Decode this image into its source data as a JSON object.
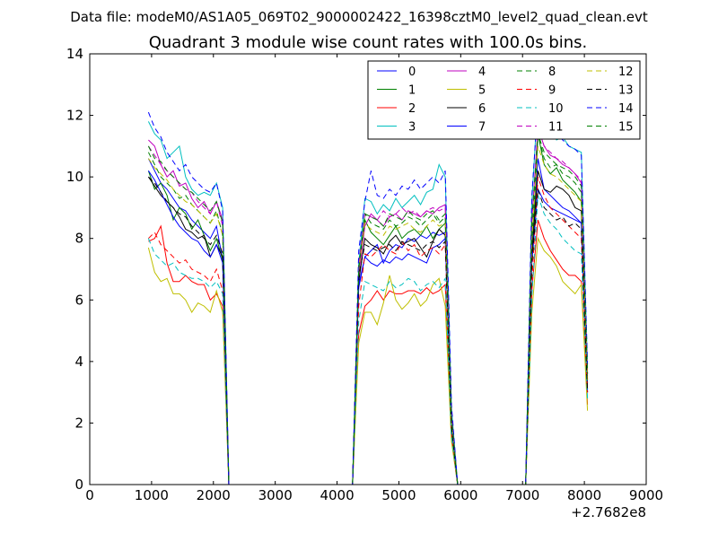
{
  "chart_data": {
    "type": "line",
    "suptitle": "Data file: modeM0/AS1A05_069T02_9000002422_16398cztM0_level2_quad_clean.evt",
    "title": "Quadrant 3 module wise count rates with 100.0s bins.",
    "xlabel": "",
    "ylabel": "",
    "x_offset_label": "+2.7682e8",
    "xlim": [
      0,
      9000
    ],
    "ylim": [
      0,
      14
    ],
    "xticks": [
      0,
      1000,
      2000,
      3000,
      4000,
      5000,
      6000,
      7000,
      8000,
      9000
    ],
    "yticks": [
      0,
      2,
      4,
      6,
      8,
      10,
      12,
      14
    ],
    "grid": false,
    "legend_position": "top-right",
    "x": [
      950,
      1050,
      1150,
      1250,
      1350,
      1450,
      1550,
      1650,
      1750,
      1850,
      1950,
      2050,
      2150,
      2250,
      2350,
      4250,
      4350,
      4450,
      4550,
      4650,
      4750,
      4850,
      4950,
      5050,
      5150,
      5250,
      5350,
      5450,
      5550,
      5650,
      5750,
      5850,
      5950,
      6050,
      7050,
      7150,
      7250,
      7350,
      7450,
      7550,
      7650,
      7750,
      7850,
      7950,
      8050
    ],
    "series": [
      {
        "name": "0",
        "color": "#0000ff",
        "dash": "solid",
        "values": [
          10.6,
          10.2,
          9.8,
          9.6,
          9.3,
          9.0,
          8.9,
          8.6,
          8.4,
          8.2,
          8.0,
          8.4,
          7.3,
          0,
          0,
          0,
          6.4,
          7.4,
          7.6,
          7.8,
          7.2,
          7.6,
          7.8,
          7.7,
          8.0,
          7.9,
          8.1,
          8.0,
          8.2,
          8.1,
          8.2,
          2.0,
          0,
          0,
          0,
          7.6,
          10.6,
          9.6,
          9.4,
          9.2,
          9.0,
          8.9,
          8.7,
          8.5,
          3.0
        ]
      },
      {
        "name": "1",
        "color": "#008000",
        "dash": "solid",
        "values": [
          10.2,
          9.6,
          9.8,
          9.4,
          8.6,
          9.0,
          8.8,
          8.3,
          8.6,
          8.1,
          7.6,
          8.0,
          7.3,
          0,
          0,
          0,
          7.0,
          8.6,
          8.2,
          8.0,
          7.8,
          8.1,
          8.4,
          8.0,
          8.2,
          8.3,
          8.1,
          8.4,
          8.0,
          8.3,
          8.5,
          2.1,
          0,
          0,
          0,
          7.3,
          11.4,
          10.4,
          10.1,
          10.3,
          9.9,
          9.7,
          9.5,
          9.2,
          3.3
        ]
      },
      {
        "name": "2",
        "color": "#ff0000",
        "dash": "solid",
        "values": [
          7.9,
          8.0,
          8.4,
          7.2,
          6.6,
          6.6,
          6.8,
          6.6,
          6.5,
          6.5,
          6.0,
          6.2,
          5.8,
          0,
          0,
          0,
          4.9,
          5.8,
          6.0,
          6.3,
          6.0,
          6.3,
          6.2,
          6.2,
          6.3,
          6.3,
          6.2,
          6.4,
          6.2,
          6.3,
          6.5,
          1.5,
          0,
          0,
          0,
          6.3,
          8.6,
          8.0,
          7.6,
          7.3,
          7.0,
          6.8,
          6.8,
          6.6,
          2.6
        ]
      },
      {
        "name": "3",
        "color": "#00bfbf",
        "dash": "solid",
        "values": [
          11.8,
          11.4,
          11.2,
          10.6,
          10.8,
          11.0,
          10.0,
          9.6,
          9.4,
          9.5,
          9.4,
          9.8,
          9.0,
          0,
          0,
          0,
          7.2,
          9.3,
          9.2,
          8.8,
          9.1,
          8.9,
          9.3,
          9.0,
          9.2,
          9.4,
          9.1,
          9.5,
          9.6,
          10.4,
          10.0,
          2.5,
          0,
          0,
          0,
          9.2,
          12.6,
          11.8,
          11.5,
          11.2,
          11.3,
          11.0,
          10.9,
          10.8,
          3.8
        ]
      },
      {
        "name": "4",
        "color": "#bf00bf",
        "dash": "solid",
        "values": [
          11.2,
          11.0,
          10.4,
          10.0,
          10.2,
          9.7,
          9.8,
          9.3,
          9.0,
          9.2,
          8.8,
          9.2,
          8.6,
          0,
          0,
          0,
          6.8,
          8.4,
          8.8,
          8.6,
          8.4,
          8.7,
          8.8,
          8.6,
          8.9,
          8.8,
          8.7,
          8.9,
          8.8,
          9.0,
          9.1,
          2.3,
          0,
          0,
          0,
          8.6,
          11.6,
          11.0,
          10.7,
          10.6,
          10.4,
          10.3,
          10.1,
          9.8,
          3.6
        ]
      },
      {
        "name": "5",
        "color": "#bfbf00",
        "dash": "solid",
        "values": [
          7.7,
          6.9,
          6.6,
          6.7,
          6.2,
          6.2,
          6.0,
          5.6,
          5.9,
          5.8,
          5.6,
          6.3,
          5.6,
          0,
          0,
          0,
          4.6,
          5.6,
          5.6,
          5.2,
          5.9,
          6.8,
          6.0,
          5.7,
          5.9,
          6.2,
          5.8,
          6.0,
          6.5,
          6.7,
          5.8,
          1.4,
          0,
          0,
          0,
          5.6,
          8.0,
          7.6,
          7.4,
          7.1,
          6.6,
          6.4,
          6.2,
          6.5,
          2.4
        ]
      },
      {
        "name": "6",
        "color": "#000000",
        "dash": "solid",
        "values": [
          10.0,
          9.7,
          9.4,
          9.2,
          9.0,
          8.7,
          8.3,
          8.2,
          8.0,
          8.1,
          7.4,
          7.8,
          7.4,
          0,
          0,
          0,
          6.6,
          8.0,
          7.8,
          7.7,
          7.5,
          7.9,
          8.1,
          7.8,
          7.9,
          8.0,
          7.7,
          7.4,
          7.9,
          8.3,
          8.1,
          1.9,
          0,
          0,
          0,
          7.4,
          10.2,
          9.6,
          9.5,
          9.7,
          9.6,
          9.4,
          9.0,
          8.9,
          3.1
        ]
      },
      {
        "name": "7",
        "color": "#0000ff",
        "dash": "solid",
        "values": [
          10.2,
          9.9,
          9.5,
          9.1,
          8.7,
          8.4,
          8.2,
          8.0,
          7.9,
          7.6,
          7.4,
          7.8,
          7.2,
          0,
          0,
          0,
          6.5,
          7.4,
          7.2,
          7.1,
          7.3,
          7.2,
          7.4,
          7.3,
          7.5,
          7.4,
          7.3,
          7.2,
          7.7,
          7.8,
          8.0,
          1.8,
          0,
          0,
          0,
          7.2,
          9.6,
          9.2,
          9.0,
          8.9,
          8.8,
          8.7,
          8.6,
          8.5,
          3.0
        ]
      },
      {
        "name": "8",
        "color": "#008000",
        "dash": "dashed",
        "values": [
          10.8,
          10.4,
          10.0,
          9.8,
          9.6,
          9.3,
          9.4,
          9.1,
          8.9,
          8.7,
          8.5,
          8.9,
          8.1,
          0,
          0,
          0,
          7.1,
          8.8,
          8.5,
          8.4,
          8.3,
          8.6,
          8.4,
          8.5,
          8.7,
          8.6,
          8.4,
          8.6,
          8.8,
          8.5,
          8.7,
          2.1,
          0,
          0,
          0,
          8.0,
          11.4,
          10.6,
          10.3,
          10.4,
          10.1,
          10.0,
          9.8,
          9.5,
          3.4
        ]
      },
      {
        "name": "9",
        "color": "#ff0000",
        "dash": "dashed",
        "values": [
          8.0,
          8.2,
          7.8,
          7.6,
          7.4,
          7.2,
          7.3,
          7.0,
          6.9,
          6.8,
          6.6,
          7.0,
          6.3,
          0,
          0,
          0,
          5.8,
          7.5,
          7.4,
          7.6,
          7.8,
          7.6,
          7.5,
          7.9,
          7.6,
          7.8,
          7.4,
          7.6,
          7.7,
          7.5,
          7.8,
          1.8,
          0,
          0,
          0,
          6.6,
          10.0,
          9.4,
          9.0,
          8.8,
          8.6,
          8.4,
          8.2,
          8.0,
          3.0
        ]
      },
      {
        "name": "10",
        "color": "#00bfbf",
        "dash": "dashed",
        "values": [
          8.0,
          7.5,
          7.3,
          7.1,
          7.2,
          6.9,
          6.8,
          6.7,
          6.7,
          6.6,
          6.4,
          6.6,
          6.2,
          0,
          0,
          0,
          5.3,
          6.6,
          6.5,
          6.4,
          6.3,
          6.6,
          6.4,
          6.5,
          6.7,
          6.6,
          6.3,
          6.5,
          6.6,
          6.4,
          6.7,
          1.6,
          0,
          0,
          0,
          6.1,
          9.4,
          8.8,
          8.5,
          8.3,
          8.0,
          7.8,
          7.6,
          7.5,
          2.8
        ]
      },
      {
        "name": "11",
        "color": "#bf00bf",
        "dash": "dashed",
        "values": [
          11.0,
          10.7,
          10.4,
          10.2,
          10.0,
          9.8,
          9.6,
          9.5,
          9.2,
          9.0,
          8.8,
          9.2,
          8.4,
          0,
          0,
          0,
          7.2,
          8.8,
          8.7,
          8.6,
          8.9,
          8.7,
          8.8,
          9.0,
          8.8,
          8.9,
          8.7,
          8.9,
          9.0,
          8.9,
          9.0,
          2.2,
          0,
          0,
          0,
          8.4,
          11.6,
          11.0,
          10.8,
          10.6,
          10.5,
          10.3,
          10.1,
          9.9,
          3.6
        ]
      },
      {
        "name": "12",
        "color": "#bfbf00",
        "dash": "dashed",
        "values": [
          10.6,
          10.3,
          10.1,
          9.9,
          9.6,
          9.4,
          9.2,
          9.1,
          8.9,
          8.7,
          8.5,
          8.8,
          8.1,
          0,
          0,
          0,
          7.0,
          8.5,
          8.3,
          8.2,
          8.1,
          8.4,
          8.3,
          8.4,
          8.5,
          8.3,
          8.2,
          8.4,
          8.6,
          8.4,
          8.5,
          2.1,
          0,
          0,
          0,
          8.0,
          11.0,
          10.4,
          10.1,
          10.0,
          9.8,
          9.6,
          9.4,
          9.2,
          3.4
        ]
      },
      {
        "name": "13",
        "color": "#000000",
        "dash": "dashed",
        "values": [
          10.0,
          9.8,
          9.5,
          9.2,
          9.0,
          8.8,
          8.7,
          8.4,
          8.2,
          8.0,
          7.8,
          8.1,
          7.5,
          0,
          0,
          0,
          6.8,
          7.8,
          7.7,
          7.6,
          7.7,
          7.8,
          7.6,
          7.9,
          7.8,
          7.7,
          7.6,
          7.8,
          7.9,
          7.7,
          7.9,
          1.9,
          0,
          0,
          0,
          7.2,
          9.6,
          9.0,
          8.8,
          8.6,
          8.7,
          8.4,
          8.5,
          8.3,
          3.0
        ]
      },
      {
        "name": "14",
        "color": "#0000ff",
        "dash": "dashed",
        "values": [
          12.1,
          11.6,
          11.3,
          10.8,
          10.5,
          10.2,
          10.4,
          10.0,
          9.8,
          9.6,
          9.5,
          9.8,
          8.9,
          0,
          0,
          0,
          7.6,
          9.2,
          10.2,
          9.4,
          9.3,
          9.6,
          9.4,
          9.7,
          9.6,
          9.9,
          9.6,
          9.8,
          10.0,
          9.8,
          10.2,
          2.6,
          0,
          0,
          0,
          9.4,
          12.4,
          11.8,
          11.6,
          11.4,
          11.2,
          11.0,
          10.9,
          10.7,
          3.9
        ]
      },
      {
        "name": "15",
        "color": "#008000",
        "dash": "dashed",
        "values": [
          11.0,
          10.6,
          10.5,
          10.2,
          10.0,
          9.8,
          9.6,
          9.5,
          9.3,
          9.1,
          8.9,
          9.2,
          8.5,
          0,
          0,
          0,
          7.0,
          8.8,
          8.7,
          8.6,
          8.4,
          8.8,
          8.7,
          8.6,
          8.9,
          8.7,
          8.6,
          8.8,
          8.9,
          8.6,
          8.8,
          2.2,
          0,
          0,
          0,
          8.6,
          11.4,
          10.8,
          10.6,
          10.4,
          10.3,
          10.2,
          10.0,
          9.7,
          3.6
        ]
      }
    ]
  }
}
